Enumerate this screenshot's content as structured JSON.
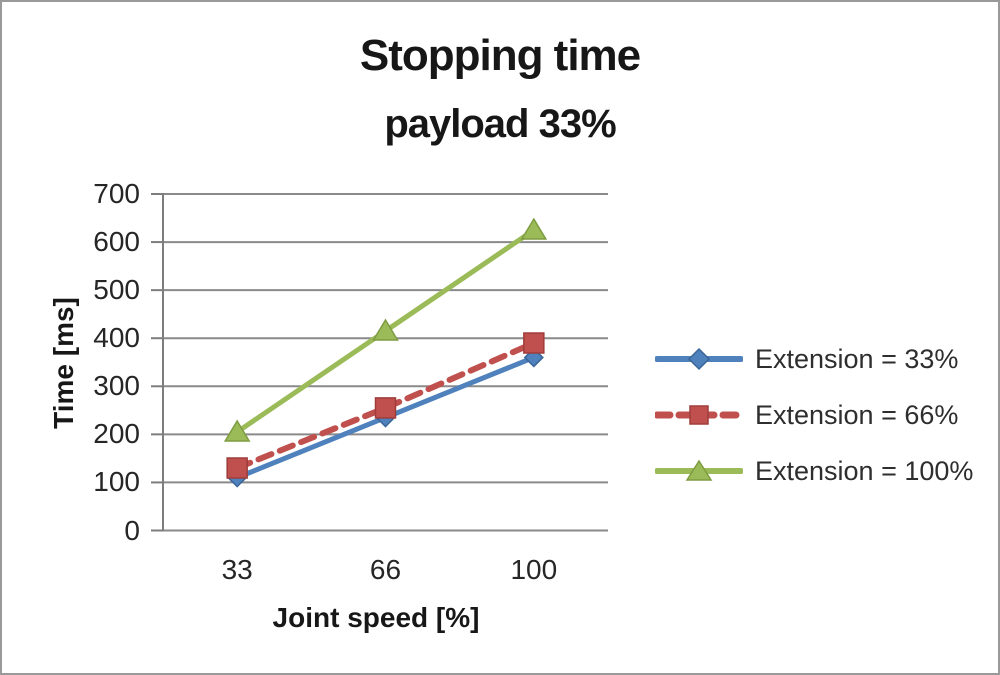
{
  "title": "Stopping time",
  "subtitle": "payload 33%",
  "chart_data": {
    "type": "line",
    "title": "Stopping time",
    "subtitle": "payload 33%",
    "xlabel": "Joint speed [%]",
    "ylabel": "Time [ms]",
    "x": [
      33,
      66,
      100
    ],
    "x_labels": [
      "33",
      "66",
      "100"
    ],
    "ylim": [
      0,
      700
    ],
    "ytick_step": 100,
    "ytick_labels_top_down": [
      "700",
      "600",
      "500",
      "400",
      "300",
      "200",
      "100",
      "0"
    ],
    "grid": true,
    "legend_position": "right",
    "series": [
      {
        "name": "Extension = 33%",
        "values": [
          110,
          235,
          360
        ],
        "color": "#4f81bd",
        "marker_stroke": "#3a6598",
        "line_style": "solid",
        "marker": "diamond"
      },
      {
        "name": "Extension = 66%",
        "values": [
          130,
          255,
          390
        ],
        "color": "#c0504d",
        "marker_stroke": "#9e3d3b",
        "line_style": "dashed",
        "marker": "square"
      },
      {
        "name": "Extension = 100%",
        "values": [
          205,
          415,
          625
        ],
        "color": "#9bbb59",
        "marker_stroke": "#7e9c41",
        "line_style": "solid",
        "marker": "triangle"
      }
    ]
  },
  "style_colors": {
    "gridline": "#8a8a8a",
    "axis": "#7d7d7d",
    "frame_border": "#9a9a9a",
    "text": "#262626"
  }
}
